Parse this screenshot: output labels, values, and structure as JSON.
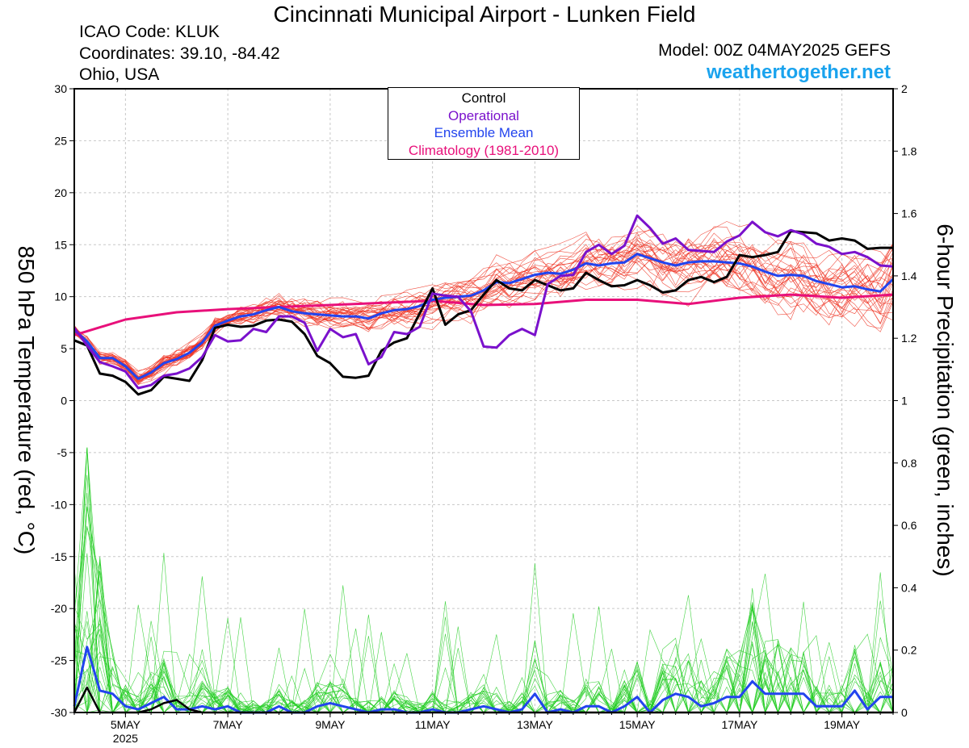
{
  "header": {
    "title": "Cincinnati Municipal Airport - Lunken Field",
    "icao": "ICAO Code: KLUK",
    "coordinates": "Coordinates: 39.10, -84.42",
    "region": "Ohio, USA",
    "model": "Model: 00Z 04MAY2025 GEFS",
    "site": "weathertogether.net"
  },
  "chart_data": {
    "type": "line",
    "title": "Cincinnati Municipal Airport - Lunken Field",
    "ylabel": "850 hPa Temperature (red, °C)",
    "y2label": "6-hour Precipitation (green, inches)",
    "ylim": [
      -30,
      30
    ],
    "y2lim": [
      0,
      2
    ],
    "xlim_days": [
      4.0,
      20.0
    ],
    "yticks": [
      "30",
      "25",
      "20",
      "15",
      "10",
      "5",
      "0",
      "-5",
      "-10",
      "-15",
      "-20",
      "-25",
      "-30"
    ],
    "y2ticks": [
      "2",
      "1.8",
      "1.6",
      "1.4",
      "1.2",
      "1",
      "0.8",
      "0.6",
      "0.4",
      "0.2",
      "0"
    ],
    "xticks": [
      {
        "label": "5MAY",
        "day": 5
      },
      {
        "label": "7MAY",
        "day": 7
      },
      {
        "label": "9MAY",
        "day": 9
      },
      {
        "label": "11MAY",
        "day": 11
      },
      {
        "label": "13MAY",
        "day": 13
      },
      {
        "label": "15MAY",
        "day": 15
      },
      {
        "label": "17MAY",
        "day": 17
      },
      {
        "label": "19MAY",
        "day": 19
      }
    ],
    "xyear": "2025",
    "legend": [
      "Control",
      "Operational",
      "Ensemble Mean",
      "Climatology (1981-2010)"
    ],
    "legend_position": "top-center",
    "colors": {
      "control": "#000000",
      "operational": "#7a11cc",
      "mean": "#2244ee",
      "climatology": "#e8107a",
      "members_temp": "#ee3322",
      "members_precip": "#22cc22",
      "site": "#1aa3ee"
    },
    "temperature": {
      "climatology": [
        [
          4.0,
          6.3
        ],
        [
          5.0,
          7.8
        ],
        [
          6.0,
          8.5
        ],
        [
          7.0,
          8.8
        ],
        [
          8.0,
          9.0
        ],
        [
          9.0,
          9.2
        ],
        [
          10.0,
          9.4
        ],
        [
          11.0,
          9.6
        ],
        [
          12.0,
          9.2
        ],
        [
          13.0,
          9.3
        ],
        [
          14.0,
          9.7
        ],
        [
          15.0,
          9.7
        ],
        [
          16.0,
          9.3
        ],
        [
          17.0,
          9.9
        ],
        [
          18.0,
          10.2
        ],
        [
          19.0,
          9.9
        ],
        [
          20.0,
          10.2
        ]
      ],
      "control": [
        [
          4.0,
          5.8
        ],
        [
          4.25,
          5.3
        ],
        [
          4.5,
          2.6
        ],
        [
          4.75,
          2.4
        ],
        [
          5.0,
          1.8
        ],
        [
          5.25,
          0.6
        ],
        [
          5.5,
          1.0
        ],
        [
          5.75,
          2.3
        ],
        [
          6.0,
          2.1
        ],
        [
          6.25,
          1.9
        ],
        [
          6.5,
          3.9
        ],
        [
          6.75,
          7.0
        ],
        [
          7.0,
          7.3
        ],
        [
          7.25,
          7.1
        ],
        [
          7.5,
          7.2
        ],
        [
          7.75,
          7.7
        ],
        [
          8.0,
          7.8
        ],
        [
          8.25,
          7.6
        ],
        [
          8.5,
          6.4
        ],
        [
          8.75,
          4.3
        ],
        [
          9.0,
          3.6
        ],
        [
          9.25,
          2.3
        ],
        [
          9.5,
          2.2
        ],
        [
          9.75,
          2.4
        ],
        [
          10.0,
          4.8
        ],
        [
          10.25,
          5.6
        ],
        [
          10.5,
          6.0
        ],
        [
          10.75,
          8.4
        ],
        [
          11.0,
          10.8
        ],
        [
          11.25,
          7.3
        ],
        [
          11.5,
          8.3
        ],
        [
          11.75,
          8.7
        ],
        [
          12.0,
          10.2
        ],
        [
          12.25,
          11.6
        ],
        [
          12.5,
          10.8
        ],
        [
          12.75,
          10.6
        ],
        [
          13.0,
          11.6
        ],
        [
          13.25,
          11.1
        ],
        [
          13.5,
          10.6
        ],
        [
          13.75,
          10.8
        ],
        [
          14.0,
          12.3
        ],
        [
          14.25,
          11.6
        ],
        [
          14.5,
          11.0
        ],
        [
          14.75,
          11.1
        ],
        [
          15.0,
          11.6
        ],
        [
          15.25,
          11.1
        ],
        [
          15.5,
          10.4
        ],
        [
          15.75,
          10.6
        ],
        [
          16.0,
          11.6
        ],
        [
          16.25,
          11.9
        ],
        [
          16.5,
          11.4
        ],
        [
          16.75,
          11.9
        ],
        [
          17.0,
          14.0
        ],
        [
          17.25,
          13.8
        ],
        [
          17.5,
          14.0
        ],
        [
          17.75,
          14.3
        ],
        [
          18.0,
          16.3
        ],
        [
          18.25,
          16.2
        ],
        [
          18.5,
          16.1
        ],
        [
          18.75,
          15.4
        ],
        [
          19.0,
          15.6
        ],
        [
          19.25,
          15.4
        ],
        [
          19.5,
          14.6
        ],
        [
          19.75,
          14.7
        ],
        [
          20.0,
          14.7
        ]
      ],
      "operational": [
        [
          4.0,
          7.0
        ],
        [
          4.25,
          5.3
        ],
        [
          4.5,
          3.7
        ],
        [
          4.75,
          3.3
        ],
        [
          5.0,
          2.8
        ],
        [
          5.25,
          1.2
        ],
        [
          5.5,
          1.5
        ],
        [
          5.75,
          2.4
        ],
        [
          6.0,
          2.6
        ],
        [
          6.25,
          3.1
        ],
        [
          6.5,
          4.2
        ],
        [
          6.75,
          6.3
        ],
        [
          7.0,
          5.7
        ],
        [
          7.25,
          5.8
        ],
        [
          7.5,
          6.9
        ],
        [
          7.75,
          6.6
        ],
        [
          8.0,
          8.1
        ],
        [
          8.25,
          8.1
        ],
        [
          8.5,
          7.5
        ],
        [
          8.75,
          4.8
        ],
        [
          9.0,
          6.9
        ],
        [
          9.25,
          6.1
        ],
        [
          9.5,
          6.4
        ],
        [
          9.75,
          3.5
        ],
        [
          10.0,
          4.2
        ],
        [
          10.25,
          6.6
        ],
        [
          10.5,
          6.4
        ],
        [
          10.75,
          7.1
        ],
        [
          11.0,
          10.3
        ],
        [
          11.25,
          10.1
        ],
        [
          11.5,
          10.0
        ],
        [
          11.75,
          8.6
        ],
        [
          12.0,
          5.2
        ],
        [
          12.25,
          5.1
        ],
        [
          12.5,
          6.3
        ],
        [
          12.75,
          6.9
        ],
        [
          13.0,
          6.3
        ],
        [
          13.25,
          11.2
        ],
        [
          13.5,
          12.0
        ],
        [
          13.75,
          12.1
        ],
        [
          14.0,
          14.3
        ],
        [
          14.25,
          15.0
        ],
        [
          14.5,
          14.1
        ],
        [
          14.75,
          14.9
        ],
        [
          15.0,
          17.8
        ],
        [
          15.25,
          16.6
        ],
        [
          15.5,
          15.1
        ],
        [
          15.75,
          15.6
        ],
        [
          16.0,
          14.5
        ],
        [
          16.25,
          14.4
        ],
        [
          16.5,
          14.3
        ],
        [
          16.75,
          15.3
        ],
        [
          17.0,
          15.9
        ],
        [
          17.25,
          17.2
        ],
        [
          17.5,
          16.2
        ],
        [
          17.75,
          15.8
        ],
        [
          18.0,
          16.4
        ],
        [
          18.25,
          16.0
        ],
        [
          18.5,
          15.1
        ],
        [
          18.75,
          14.8
        ],
        [
          19.0,
          14.1
        ],
        [
          19.25,
          14.3
        ],
        [
          19.5,
          13.8
        ],
        [
          19.75,
          13.0
        ],
        [
          20.0,
          12.9
        ]
      ],
      "mean": [
        [
          4.0,
          6.8
        ],
        [
          4.25,
          5.7
        ],
        [
          4.5,
          4.1
        ],
        [
          4.75,
          4.1
        ],
        [
          5.0,
          3.3
        ],
        [
          5.25,
          2.1
        ],
        [
          5.5,
          2.7
        ],
        [
          5.75,
          3.6
        ],
        [
          6.0,
          4.0
        ],
        [
          6.25,
          4.6
        ],
        [
          6.5,
          5.6
        ],
        [
          6.75,
          7.2
        ],
        [
          7.0,
          7.7
        ],
        [
          7.25,
          8.1
        ],
        [
          7.5,
          8.3
        ],
        [
          7.75,
          8.7
        ],
        [
          8.0,
          9.0
        ],
        [
          8.25,
          8.6
        ],
        [
          8.5,
          8.4
        ],
        [
          8.75,
          8.3
        ],
        [
          9.0,
          8.2
        ],
        [
          9.25,
          8.1
        ],
        [
          9.5,
          8.1
        ],
        [
          9.75,
          7.9
        ],
        [
          10.0,
          8.4
        ],
        [
          10.25,
          8.7
        ],
        [
          10.5,
          8.8
        ],
        [
          10.75,
          9.1
        ],
        [
          11.0,
          9.7
        ],
        [
          11.25,
          9.9
        ],
        [
          11.5,
          10.0
        ],
        [
          11.75,
          10.1
        ],
        [
          12.0,
          10.6
        ],
        [
          12.25,
          11.4
        ],
        [
          12.5,
          11.3
        ],
        [
          12.75,
          11.7
        ],
        [
          13.0,
          12.1
        ],
        [
          13.25,
          12.3
        ],
        [
          13.5,
          12.2
        ],
        [
          13.75,
          12.6
        ],
        [
          14.0,
          13.2
        ],
        [
          14.25,
          13.0
        ],
        [
          14.5,
          13.2
        ],
        [
          14.75,
          13.3
        ],
        [
          15.0,
          14.1
        ],
        [
          15.25,
          13.7
        ],
        [
          15.5,
          13.3
        ],
        [
          15.75,
          13.0
        ],
        [
          16.0,
          13.3
        ],
        [
          16.25,
          13.4
        ],
        [
          16.5,
          13.4
        ],
        [
          16.75,
          13.3
        ],
        [
          17.0,
          13.2
        ],
        [
          17.25,
          12.9
        ],
        [
          17.5,
          12.4
        ],
        [
          17.75,
          12.0
        ],
        [
          18.0,
          12.1
        ],
        [
          18.25,
          12.0
        ],
        [
          18.5,
          11.5
        ],
        [
          18.75,
          11.2
        ],
        [
          19.0,
          10.9
        ],
        [
          19.25,
          11.0
        ],
        [
          19.5,
          10.7
        ],
        [
          19.75,
          10.5
        ],
        [
          20.0,
          11.7
        ]
      ]
    },
    "precipitation": {
      "control": [
        [
          4.0,
          0.0
        ],
        [
          4.25,
          0.08
        ],
        [
          4.5,
          0.0
        ],
        [
          4.75,
          0.0
        ],
        [
          5.0,
          0.0
        ],
        [
          5.25,
          0.0
        ],
        [
          5.5,
          0.01
        ],
        [
          5.75,
          0.03
        ],
        [
          6.0,
          0.04
        ],
        [
          6.25,
          0.01
        ],
        [
          6.5,
          0.0
        ],
        [
          6.75,
          0.0
        ],
        [
          7.0,
          0.0
        ],
        [
          7.5,
          0.0
        ],
        [
          8.0,
          0.0
        ],
        [
          20.0,
          0.0
        ]
      ],
      "mean": [
        [
          4.0,
          0.02
        ],
        [
          4.25,
          0.21
        ],
        [
          4.5,
          0.07
        ],
        [
          4.75,
          0.06
        ],
        [
          5.0,
          0.02
        ],
        [
          5.25,
          0.01
        ],
        [
          5.5,
          0.03
        ],
        [
          5.75,
          0.05
        ],
        [
          6.0,
          0.01
        ],
        [
          6.25,
          0.01
        ],
        [
          6.5,
          0.02
        ],
        [
          6.75,
          0.01
        ],
        [
          7.0,
          0.02
        ],
        [
          7.25,
          0.0
        ],
        [
          7.5,
          0.0
        ],
        [
          7.75,
          0.0
        ],
        [
          8.0,
          0.02
        ],
        [
          8.25,
          0.0
        ],
        [
          8.5,
          0.0
        ],
        [
          8.75,
          0.02
        ],
        [
          9.0,
          0.03
        ],
        [
          9.25,
          0.02
        ],
        [
          9.5,
          0.01
        ],
        [
          9.75,
          0.0
        ],
        [
          10.0,
          0.01
        ],
        [
          10.25,
          0.01
        ],
        [
          10.5,
          0.0
        ],
        [
          10.75,
          0.0
        ],
        [
          11.0,
          0.01
        ],
        [
          11.25,
          0.0
        ],
        [
          11.5,
          0.0
        ],
        [
          11.75,
          0.01
        ],
        [
          12.0,
          0.02
        ],
        [
          12.25,
          0.01
        ],
        [
          12.5,
          0.0
        ],
        [
          12.75,
          0.01
        ],
        [
          13.0,
          0.06
        ],
        [
          13.25,
          0.0
        ],
        [
          13.5,
          0.01
        ],
        [
          13.75,
          0.0
        ],
        [
          14.0,
          0.02
        ],
        [
          14.25,
          0.02
        ],
        [
          14.5,
          0.0
        ],
        [
          14.75,
          0.02
        ],
        [
          15.0,
          0.05
        ],
        [
          15.25,
          0.0
        ],
        [
          15.5,
          0.04
        ],
        [
          15.75,
          0.06
        ],
        [
          16.0,
          0.05
        ],
        [
          16.25,
          0.02
        ],
        [
          16.5,
          0.03
        ],
        [
          16.75,
          0.05
        ],
        [
          17.0,
          0.05
        ],
        [
          17.25,
          0.1
        ],
        [
          17.5,
          0.06
        ],
        [
          17.75,
          0.06
        ],
        [
          18.0,
          0.06
        ],
        [
          18.25,
          0.06
        ],
        [
          18.5,
          0.02
        ],
        [
          18.75,
          0.02
        ],
        [
          19.0,
          0.02
        ],
        [
          19.25,
          0.07
        ],
        [
          19.5,
          0.01
        ],
        [
          19.75,
          0.05
        ],
        [
          20.0,
          0.05
        ]
      ]
    }
  }
}
